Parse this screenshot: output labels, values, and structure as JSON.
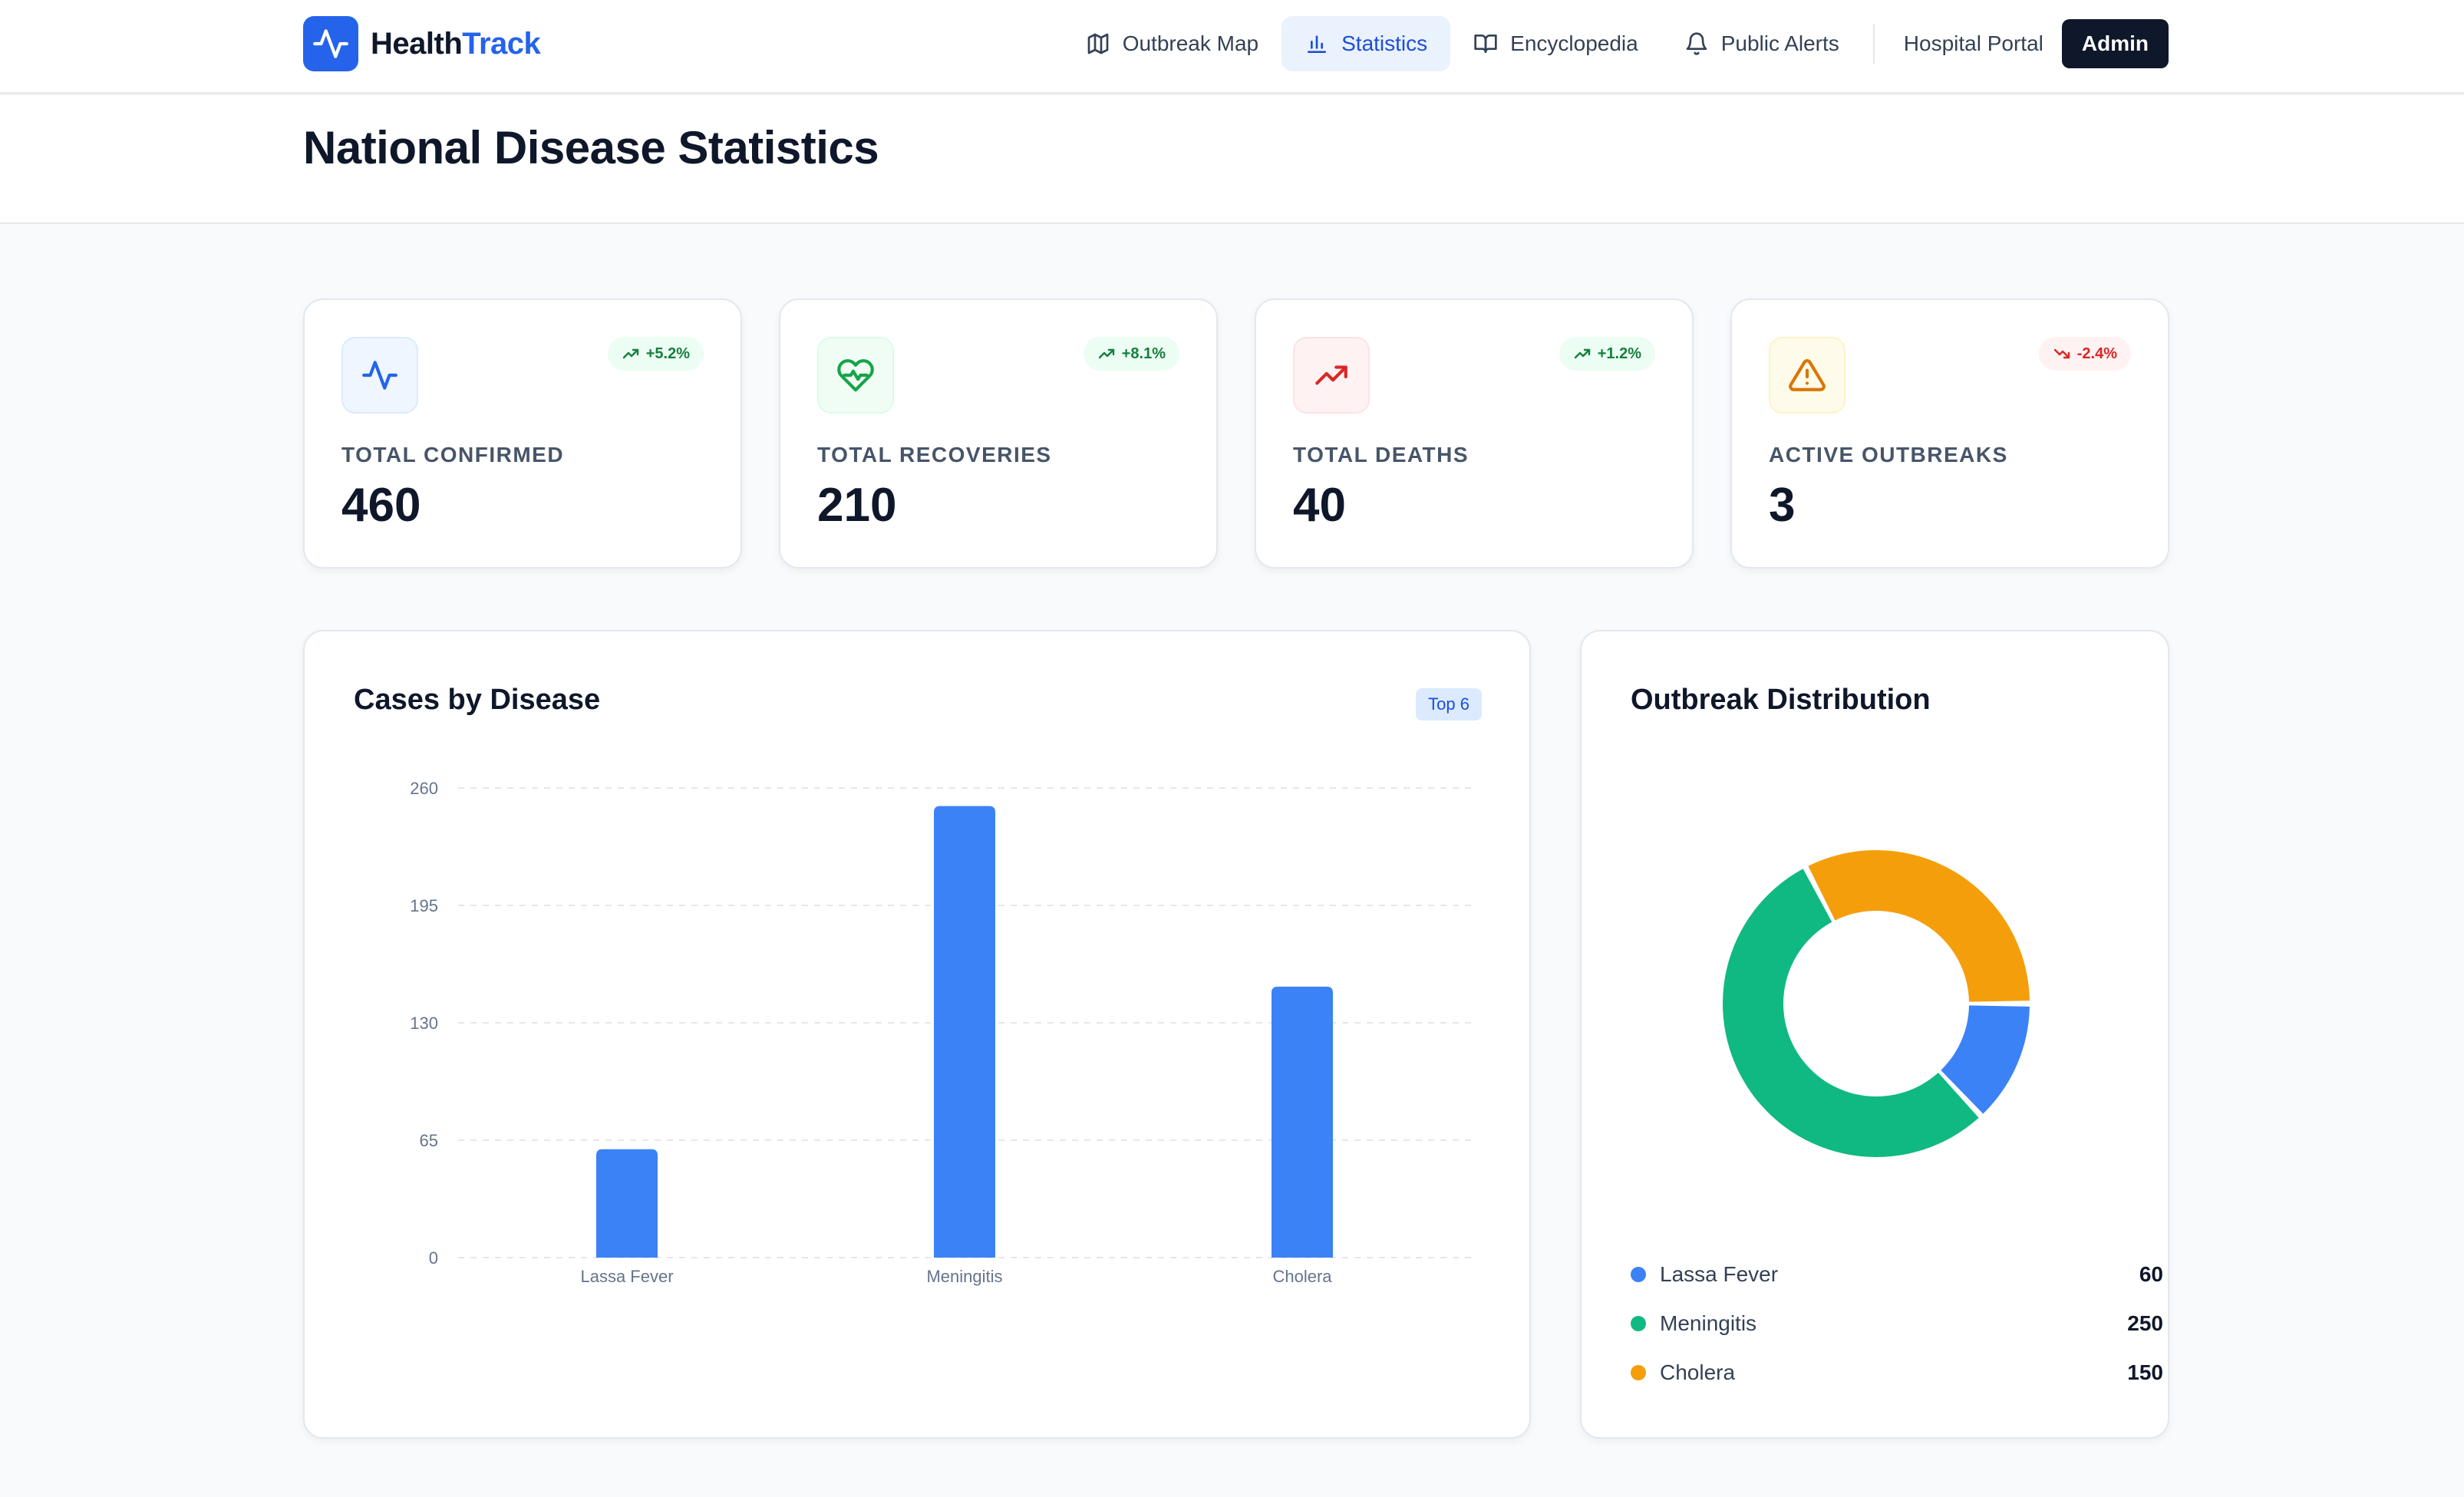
{
  "brand": {
    "name_part1": "Health",
    "name_part2": "Track",
    "icon": "activity-icon",
    "color": "#2563eb"
  },
  "nav": {
    "items": [
      {
        "label": "Outbreak Map",
        "icon": "map-icon",
        "active": false
      },
      {
        "label": "Statistics",
        "icon": "bar-chart-icon",
        "active": true
      },
      {
        "label": "Encyclopedia",
        "icon": "book-icon",
        "active": false
      },
      {
        "label": "Public Alerts",
        "icon": "bell-icon",
        "active": false
      }
    ],
    "hospital_portal": "Hospital Portal",
    "admin": "Admin"
  },
  "page": {
    "title": "National Disease Statistics"
  },
  "stats": [
    {
      "label": "TOTAL CONFIRMED",
      "value": "460",
      "trend": "+5.2%",
      "trend_dir": "up",
      "icon": "activity-icon",
      "icon_color": "#2563eb",
      "icon_bg": "#eff6ff"
    },
    {
      "label": "TOTAL RECOVERIES",
      "value": "210",
      "trend": "+8.1%",
      "trend_dir": "up",
      "icon": "heart-pulse-icon",
      "icon_color": "#16a34a",
      "icon_bg": "#f0fdf4"
    },
    {
      "label": "TOTAL DEATHS",
      "value": "40",
      "trend": "+1.2%",
      "trend_dir": "up",
      "icon": "trending-up-icon",
      "icon_color": "#dc2626",
      "icon_bg": "#fef2f2"
    },
    {
      "label": "ACTIVE OUTBREAKS",
      "value": "3",
      "trend": "-2.4%",
      "trend_dir": "down",
      "icon": "alert-triangle-icon",
      "icon_color": "#d97706",
      "icon_bg": "#fffbeb"
    }
  ],
  "cases_panel": {
    "title": "Cases by Disease",
    "chip": "Top 6"
  },
  "distribution_panel": {
    "title": "Outbreak Distribution"
  },
  "chart_data": [
    {
      "type": "bar",
      "title": "Cases by Disease",
      "categories": [
        "Lassa Fever",
        "Meningitis",
        "Cholera"
      ],
      "values": [
        60,
        250,
        150
      ],
      "yticks": [
        0,
        65,
        130,
        195,
        260
      ],
      "ylim": [
        0,
        260
      ],
      "grid": true,
      "color": "#3b82f6"
    },
    {
      "type": "pie",
      "title": "Outbreak Distribution",
      "labels": [
        "Lassa Fever",
        "Meningitis",
        "Cholera"
      ],
      "values": [
        60,
        250,
        150
      ],
      "colors": [
        "#3b82f6",
        "#10b981",
        "#f59e0b"
      ],
      "legend": "bottom"
    }
  ]
}
